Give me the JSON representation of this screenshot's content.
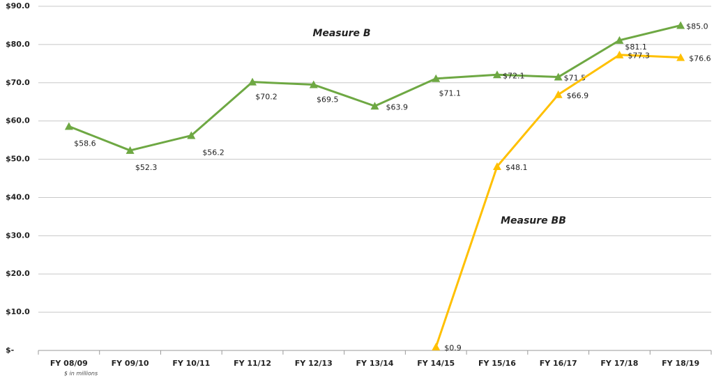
{
  "chart_data": {
    "type": "line",
    "categories": [
      "FY 08/09",
      "FY 09/10",
      "FY 10/11",
      "FY 11/12",
      "FY 12/13",
      "FY 13/14",
      "FY 14/15",
      "FY 15/16",
      "FY 16/17",
      "FY 17/18",
      "FY 18/19"
    ],
    "series": [
      {
        "name": "Measure B",
        "color": "#6ea843",
        "values": [
          58.6,
          52.3,
          56.2,
          70.2,
          69.5,
          63.9,
          71.1,
          72.1,
          71.5,
          81.1,
          85.0
        ],
        "value_labels": [
          "$58.6",
          "$52.3",
          "$56.2",
          "$70.2",
          "$69.5",
          "$63.9",
          "$71.1",
          "$72.1",
          "$71.5",
          "$81.1",
          "$85.0"
        ]
      },
      {
        "name": "Measure BB",
        "color": "#ffc000",
        "values": [
          null,
          null,
          null,
          null,
          null,
          null,
          0.9,
          48.1,
          66.9,
          77.3,
          76.6
        ],
        "value_labels": [
          null,
          null,
          null,
          null,
          null,
          null,
          "$0.9",
          "$48.1",
          "$66.9",
          "$77.3",
          "$76.6"
        ]
      }
    ],
    "ylim": [
      0,
      90
    ],
    "yticks": [
      {
        "value": 0,
        "label": "$-"
      },
      {
        "value": 10,
        "label": "$10.0"
      },
      {
        "value": 20,
        "label": "$20.0"
      },
      {
        "value": 30,
        "label": "$30.0"
      },
      {
        "value": 40,
        "label": "$40.0"
      },
      {
        "value": 50,
        "label": "$50.0"
      },
      {
        "value": 60,
        "label": "$60.0"
      },
      {
        "value": 70,
        "label": "$70.0"
      },
      {
        "value": 80,
        "label": "$80.0"
      },
      {
        "value": 90,
        "label": "$90.0"
      }
    ],
    "grid": true,
    "annotations": [
      "$ in millions"
    ]
  }
}
